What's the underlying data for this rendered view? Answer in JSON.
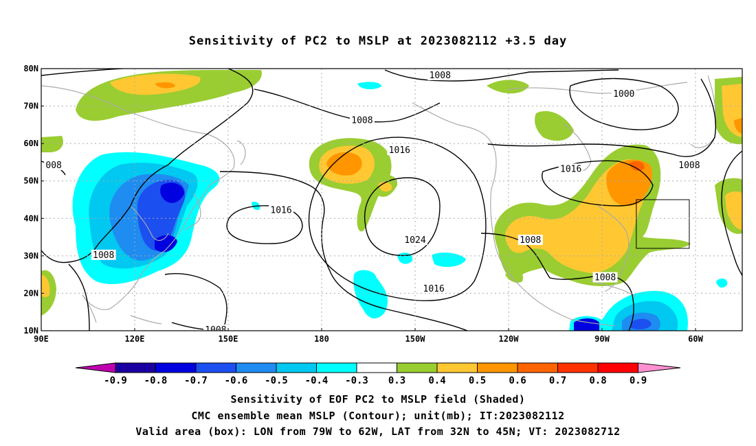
{
  "title": "Sensitivity of PC2 to MSLP at 2023082112 +3.5 day",
  "map": {
    "lon_range_deg_east": [
      90,
      315
    ],
    "lat_range": [
      10,
      80
    ],
    "lat_ticks": [
      "10N",
      "20N",
      "30N",
      "40N",
      "50N",
      "60N",
      "70N",
      "80N"
    ],
    "lat_tick_values": [
      10,
      20,
      30,
      40,
      50,
      60,
      70,
      80
    ],
    "lon_ticks": [
      "90E",
      "120E",
      "150E",
      "180",
      "150W",
      "120W",
      "90W",
      "60W"
    ],
    "lon_tick_values": [
      90,
      120,
      150,
      180,
      210,
      240,
      270,
      300
    ],
    "grid": true,
    "valid_box": {
      "lon_west": -79,
      "lon_east": -62,
      "lat_south": 32,
      "lat_north": 45
    },
    "contour_labels": [
      {
        "text": "1008",
        "lon": 218,
        "lat": 78
      },
      {
        "text": "1000",
        "lon": 277,
        "lat": 73
      },
      {
        "text": "1008",
        "lon": 193,
        "lat": 66
      },
      {
        "text": "1016",
        "lon": 205,
        "lat": 58
      },
      {
        "text": "1016",
        "lon": 260,
        "lat": 53
      },
      {
        "text": "1008",
        "lon": 298,
        "lat": 54
      },
      {
        "text": "008",
        "lon": 94,
        "lat": 54
      },
      {
        "text": "1016",
        "lon": 167,
        "lat": 42
      },
      {
        "text": "1024",
        "lon": 210,
        "lat": 34
      },
      {
        "text": "1008",
        "lon": 247,
        "lat": 34
      },
      {
        "text": "1008",
        "lon": 110,
        "lat": 30
      },
      {
        "text": "1016",
        "lon": 216,
        "lat": 21
      },
      {
        "text": "1008",
        "lon": 271,
        "lat": 24
      },
      {
        "text": "1008",
        "lon": 146,
        "lat": 10
      }
    ]
  },
  "colorbar": {
    "labels": [
      "-0.9",
      "-0.8",
      "-0.7",
      "-0.6",
      "-0.5",
      "-0.4",
      "-0.3",
      "0.3",
      "0.4",
      "0.5",
      "0.6",
      "0.7",
      "0.8",
      "0.9"
    ],
    "colors": [
      "#1a00a0",
      "#0000e0",
      "#1c4ff0",
      "#1e8cf0",
      "#00c8f0",
      "#00ffff",
      "#ffffff",
      "#9acd32",
      "#ffc832",
      "#ff9600",
      "#ff6400",
      "#ff3200",
      "#ff0000"
    ],
    "min_color": "#c000b0",
    "max_color": "#ff90d0"
  },
  "footnotes": {
    "line1": "Sensitivity of EOF PC2 to MSLP field (Shaded)",
    "line2": "CMC ensemble mean MSLP (Contour); unit(mb); IT:2023082112",
    "line3": "Valid area (box): LON from 79W to 62W, LAT from 32N to 45N; VT: 2023082712"
  },
  "colors": {
    "coast": "#aaaaaa",
    "contour": "#000000",
    "grid": "#aaaaaa"
  }
}
